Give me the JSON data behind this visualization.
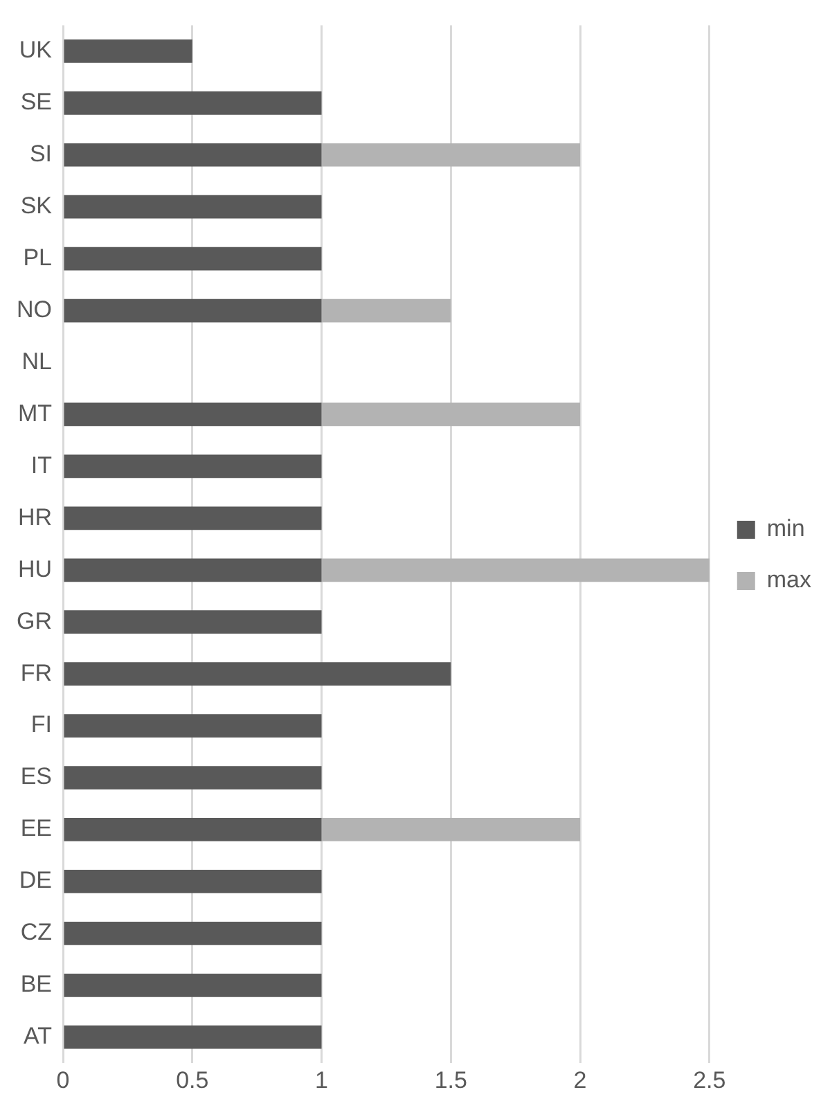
{
  "chart_data": {
    "type": "bar",
    "orientation": "horizontal",
    "stacked": true,
    "categories": [
      "UK",
      "SE",
      "SI",
      "SK",
      "PL",
      "NO",
      "NL",
      "MT",
      "IT",
      "HR",
      "HU",
      "GR",
      "FR",
      "FI",
      "ES",
      "EE",
      "DE",
      "CZ",
      "BE",
      "AT"
    ],
    "series": [
      {
        "name": "min",
        "color": "#595959",
        "values": [
          0.5,
          1,
          1,
          1,
          1,
          1,
          null,
          1,
          1,
          1,
          1,
          1,
          1.5,
          1,
          1,
          1,
          1,
          1,
          1,
          1
        ]
      },
      {
        "name": "max",
        "color": "#b3b3b3",
        "values": [
          null,
          null,
          1,
          null,
          null,
          0.5,
          null,
          1,
          null,
          null,
          1.5,
          null,
          null,
          null,
          null,
          1,
          null,
          null,
          null,
          null
        ]
      }
    ],
    "xlim": [
      0,
      2.5
    ],
    "xticks": [
      0,
      0.5,
      1,
      1.5,
      2,
      2.5
    ],
    "grid": "x",
    "legend": "right"
  }
}
